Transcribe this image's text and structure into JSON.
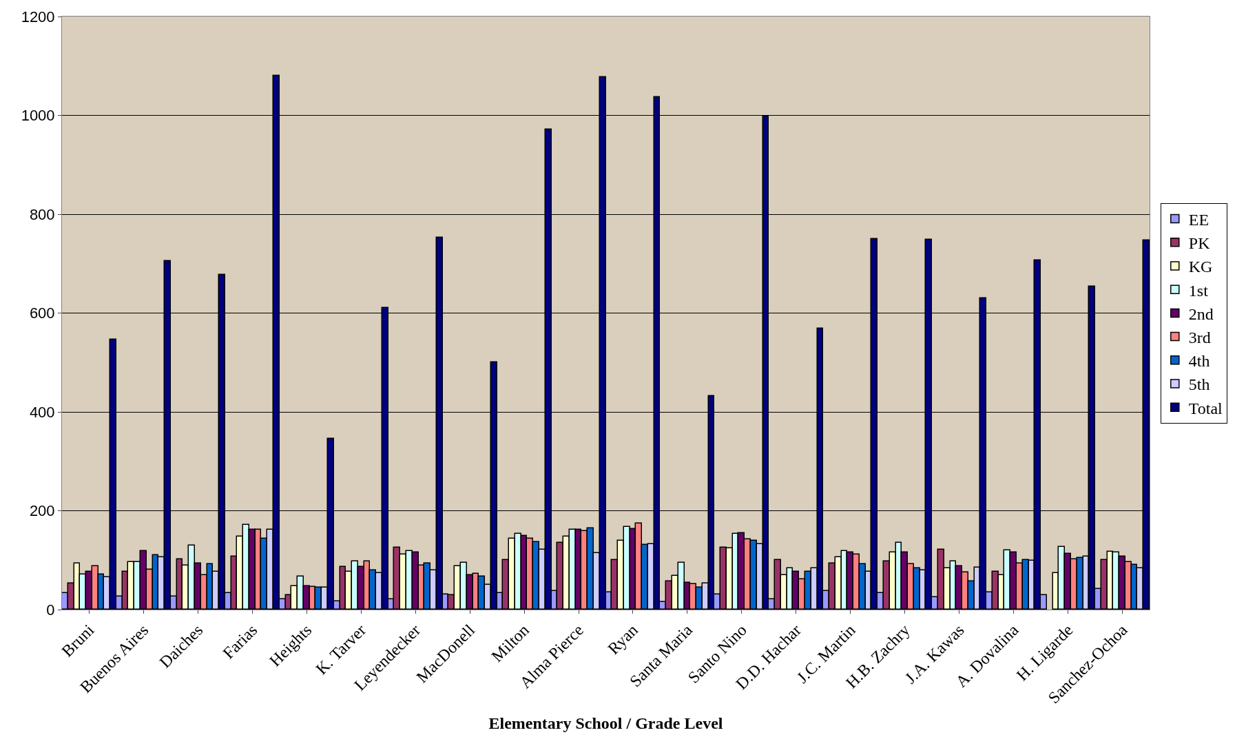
{
  "chart_data": {
    "type": "bar",
    "xlabel": "Elementary School / Grade Level",
    "categories": [
      "Bruni",
      "Buenos Aires",
      "Daiches",
      "Farias",
      "Heights",
      "K. Tarver",
      "Leyendecker",
      "MacDonell",
      "Milton",
      "Alma Pierce",
      "Ryan",
      "Santa Maria",
      "Santo Nino",
      "D.D. Hachar",
      "J.C. Martin",
      "H.B. Zachry",
      "J.A. Kawas",
      "A. Dovalina",
      "H. Ligarde",
      "Sanchez-Ochoa"
    ],
    "series": [
      {
        "name": "EE",
        "color": "#9999ff",
        "values": [
          33,
          26,
          26,
          33,
          21,
          17,
          21,
          30,
          33,
          37,
          35,
          15,
          31,
          21,
          38,
          34,
          25,
          35,
          29,
          42
        ]
      },
      {
        "name": "PK",
        "color": "#993366",
        "values": [
          53,
          76,
          102,
          107,
          29,
          86,
          126,
          29,
          100,
          135,
          101,
          57,
          125,
          101,
          93,
          97,
          121,
          76,
          0,
          100
        ]
      },
      {
        "name": "KG",
        "color": "#ffffcc",
        "values": [
          93,
          96,
          89,
          148,
          47,
          76,
          111,
          88,
          143,
          148,
          139,
          68,
          124,
          70,
          106,
          115,
          84,
          69,
          74,
          117
        ]
      },
      {
        "name": "1st",
        "color": "#ccffff",
        "values": [
          71,
          96,
          130,
          171,
          67,
          97,
          119,
          95,
          153,
          162,
          167,
          95,
          154,
          84,
          119,
          135,
          98,
          120,
          127,
          115
        ]
      },
      {
        "name": "2nd",
        "color": "#660066",
        "values": [
          76,
          119,
          93,
          161,
          48,
          86,
          116,
          70,
          149,
          161,
          163,
          55,
          155,
          76,
          115,
          116,
          88,
          116,
          113,
          108
        ]
      },
      {
        "name": "3rd",
        "color": "#ff8080",
        "values": [
          88,
          81,
          70,
          162,
          46,
          97,
          89,
          72,
          143,
          159,
          174,
          52,
          142,
          62,
          112,
          92,
          75,
          94,
          102,
          96
        ]
      },
      {
        "name": "4th",
        "color": "#0066cc",
        "values": [
          71,
          110,
          92,
          143,
          44,
          80,
          93,
          67,
          137,
          165,
          131,
          44,
          140,
          76,
          92,
          83,
          57,
          101,
          104,
          90
        ]
      },
      {
        "name": "5th",
        "color": "#ccccff",
        "values": [
          66,
          106,
          77,
          161,
          45,
          74,
          79,
          50,
          121,
          114,
          133,
          53,
          133,
          84,
          77,
          80,
          85,
          99,
          107,
          83
        ]
      },
      {
        "name": "Total",
        "color": "#000080",
        "values": [
          547,
          705,
          677,
          1080,
          345,
          610,
          752,
          500,
          972,
          1077,
          1037,
          432,
          998,
          568,
          750,
          748,
          630,
          707,
          653,
          747
        ]
      }
    ],
    "ylim": [
      0,
      1200
    ],
    "yticks": [
      0,
      200,
      400,
      600,
      800,
      1000,
      1200
    ],
    "grid": "y",
    "legend": "right"
  }
}
